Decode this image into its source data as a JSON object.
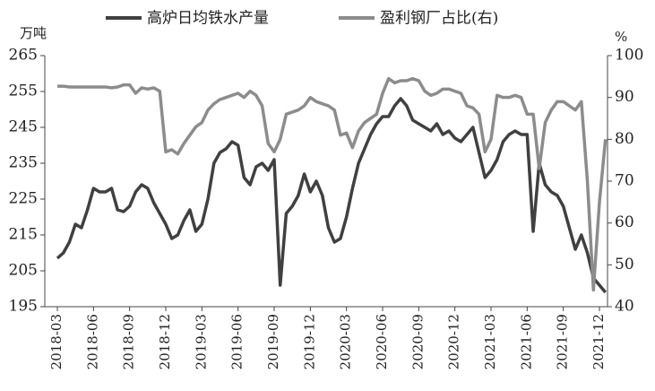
{
  "chart_data": {
    "type": "line",
    "categories": [
      "2018-03",
      null,
      null,
      null,
      null,
      null,
      "2018-06",
      null,
      null,
      null,
      null,
      null,
      "2018-09",
      null,
      null,
      null,
      null,
      null,
      "2018-12",
      null,
      null,
      null,
      null,
      null,
      "2019-03",
      null,
      null,
      null,
      null,
      null,
      "2019-06",
      null,
      null,
      null,
      null,
      null,
      "2019-09",
      null,
      null,
      null,
      null,
      null,
      "2019-12",
      null,
      null,
      null,
      null,
      null,
      "2020-03",
      null,
      null,
      null,
      null,
      null,
      "2020-06",
      null,
      null,
      null,
      null,
      null,
      "2020-09",
      null,
      null,
      null,
      null,
      null,
      "2020-12",
      null,
      null,
      null,
      null,
      null,
      "2021-03",
      null,
      null,
      null,
      null,
      null,
      "2021-06",
      null,
      null,
      null,
      null,
      null,
      "2021-09",
      null,
      null,
      null,
      null,
      null,
      "2021-12",
      null
    ],
    "series": [
      {
        "name": "高炉日均铁水产量",
        "color": "#404040",
        "axis": "y",
        "values": [
          208.5,
          210,
          213,
          218,
          217,
          222,
          228,
          227,
          227,
          228,
          222,
          221.5,
          223,
          227,
          229,
          228,
          224,
          221,
          218,
          214,
          215,
          219,
          222,
          216,
          218,
          225,
          235,
          238,
          239,
          241,
          240,
          231,
          229,
          234,
          235,
          233,
          236,
          201,
          221,
          223,
          226,
          232,
          227,
          230,
          226,
          217,
          213,
          214,
          220,
          228,
          235,
          239,
          243,
          246,
          248,
          248,
          251,
          253,
          251,
          247,
          246,
          245,
          244,
          246,
          243,
          244,
          242,
          241,
          243,
          245,
          238,
          231,
          233,
          236,
          241,
          243,
          244,
          243,
          243,
          216,
          235,
          229,
          227,
          226,
          223,
          217,
          211,
          215,
          210,
          203,
          201,
          199
        ]
      },
      {
        "name": "盈利钢厂占比(右)",
        "color": "#8c8c8c",
        "axis": "y2",
        "values": [
          92.7,
          92.7,
          92.5,
          92.5,
          92.5,
          92.5,
          92.5,
          92.5,
          92.5,
          92.3,
          92.5,
          93,
          93,
          91,
          92.3,
          92,
          92.3,
          91.5,
          77,
          77.5,
          76.5,
          79,
          81,
          83,
          84,
          87,
          88.5,
          89.5,
          90,
          90.5,
          91,
          90,
          91.5,
          90.5,
          88,
          79,
          77,
          80,
          86,
          86.5,
          87,
          88,
          90,
          89,
          88.5,
          88,
          87,
          81,
          81.5,
          78,
          82,
          84,
          85,
          86,
          91,
          94.5,
          93.5,
          94,
          94,
          94.5,
          94,
          91.5,
          90.5,
          91,
          92,
          92,
          91.5,
          91,
          88,
          87.5,
          86,
          77,
          80,
          90.5,
          90,
          90,
          90.5,
          90,
          86,
          86,
          73,
          84,
          87,
          89,
          89,
          88,
          87,
          89,
          70,
          44,
          65,
          80
        ]
      }
    ],
    "ylabel": "万吨",
    "y2label": "%",
    "ylim": [
      195,
      265
    ],
    "yticks": [
      195,
      205,
      215,
      225,
      235,
      245,
      255,
      265
    ],
    "y2lim": [
      40,
      100
    ],
    "y2ticks": [
      40,
      50,
      60,
      70,
      80,
      90,
      100
    ],
    "legend": "top",
    "grid": false
  }
}
